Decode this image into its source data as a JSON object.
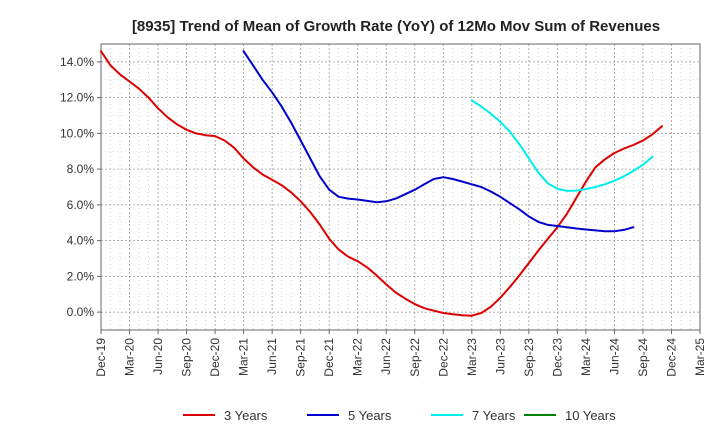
{
  "chart_data": {
    "type": "line",
    "title": "[8935]  Trend of Mean of Growth Rate (YoY) of 12Mo Mov Sum of Revenues",
    "xlabel": "",
    "ylabel": "",
    "ylim": [
      -1.0,
      15.0
    ],
    "yticks": [
      0,
      2,
      4,
      6,
      8,
      10,
      12,
      14
    ],
    "ytick_labels": [
      "0.0%",
      "2.0%",
      "4.0%",
      "6.0%",
      "8.0%",
      "10.0%",
      "12.0%",
      "14.0%"
    ],
    "x_months": [
      "Dec-19",
      "Jan-20",
      "Feb-20",
      "Mar-20",
      "Apr-20",
      "May-20",
      "Jun-20",
      "Jul-20",
      "Aug-20",
      "Sep-20",
      "Oct-20",
      "Nov-20",
      "Dec-20",
      "Jan-21",
      "Feb-21",
      "Mar-21",
      "Apr-21",
      "May-21",
      "Jun-21",
      "Jul-21",
      "Aug-21",
      "Sep-21",
      "Oct-21",
      "Nov-21",
      "Dec-21",
      "Jan-22",
      "Feb-22",
      "Mar-22",
      "Apr-22",
      "May-22",
      "Jun-22",
      "Jul-22",
      "Aug-22",
      "Sep-22",
      "Oct-22",
      "Nov-22",
      "Dec-22",
      "Jan-23",
      "Feb-23",
      "Mar-23",
      "Apr-23",
      "May-23",
      "Jun-23",
      "Jul-23",
      "Aug-23",
      "Sep-23",
      "Oct-23",
      "Nov-23",
      "Dec-23",
      "Jan-24",
      "Feb-24",
      "Mar-24",
      "Apr-24",
      "May-24",
      "Jun-24",
      "Jul-24",
      "Aug-24",
      "Sep-24",
      "Oct-24",
      "Nov-24",
      "Dec-24",
      "Jan-25",
      "Feb-25",
      "Mar-25"
    ],
    "x_tick_labels": [
      "Dec-19",
      "Mar-20",
      "Jun-20",
      "Sep-20",
      "Dec-20",
      "Mar-21",
      "Jun-21",
      "Sep-21",
      "Dec-21",
      "Mar-22",
      "Jun-22",
      "Sep-22",
      "Dec-22",
      "Mar-23",
      "Jun-23",
      "Sep-23",
      "Dec-23",
      "Mar-24",
      "Jun-24",
      "Sep-24",
      "Dec-24",
      "Mar-25"
    ],
    "x_tick_step": 3,
    "grid": true,
    "legend_position": "bottom",
    "series": [
      {
        "name": "3 Years",
        "color": "#dd0000",
        "start_index": 0,
        "values": [
          14.6,
          13.8,
          13.3,
          12.9,
          12.5,
          12.0,
          11.4,
          10.9,
          10.5,
          10.2,
          10.0,
          9.9,
          9.85,
          9.6,
          9.2,
          8.6,
          8.1,
          7.7,
          7.4,
          7.1,
          6.7,
          6.2,
          5.6,
          4.9,
          4.1,
          3.5,
          3.1,
          2.85,
          2.5,
          2.05,
          1.55,
          1.1,
          0.75,
          0.45,
          0.22,
          0.08,
          -0.05,
          -0.12,
          -0.18,
          -0.2,
          -0.05,
          0.3,
          0.8,
          1.4,
          2.05,
          2.75,
          3.45,
          4.1,
          4.75,
          5.5,
          6.4,
          7.3,
          8.1,
          8.55,
          8.9,
          9.15,
          9.35,
          9.6,
          9.95,
          10.4
        ]
      },
      {
        "name": "5 Years",
        "color": "#0000cc",
        "start_index": 15,
        "values": [
          14.6,
          13.8,
          13.0,
          12.3,
          11.5,
          10.6,
          9.6,
          8.6,
          7.6,
          6.85,
          6.45,
          6.35,
          6.3,
          6.22,
          6.15,
          6.2,
          6.35,
          6.6,
          6.85,
          7.15,
          7.45,
          7.55,
          7.45,
          7.3,
          7.15,
          7.0,
          6.75,
          6.45,
          6.1,
          5.75,
          5.35,
          5.05,
          4.88,
          4.82,
          4.75,
          4.68,
          4.62,
          4.57,
          4.52,
          4.53,
          4.6,
          4.75
        ]
      },
      {
        "name": "7 Years",
        "color": "#00eeee",
        "start_index": 39,
        "values": [
          11.85,
          11.5,
          11.1,
          10.65,
          10.1,
          9.4,
          8.6,
          7.8,
          7.2,
          6.9,
          6.78,
          6.8,
          6.88,
          7.0,
          7.15,
          7.35,
          7.6,
          7.9,
          8.25,
          8.7
        ]
      },
      {
        "name": "10 Years",
        "color": "#008000",
        "start_index": 0,
        "values": []
      }
    ]
  }
}
